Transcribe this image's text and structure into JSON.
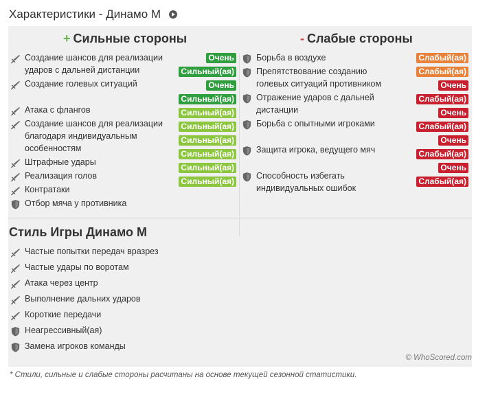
{
  "title": "Характеристики - Динамо М",
  "strengths": {
    "sign": "+",
    "heading": "Сильные стороны",
    "items": [
      {
        "text": "Создание шансов для реализации ударов с дальней дистанции",
        "icon": "sword-icon"
      },
      {
        "text": "Создание голевых ситуаций",
        "icon": "sword-icon"
      },
      {
        "text": "Атака с флангов",
        "icon": "sword-icon"
      },
      {
        "text": "Создание шансов для реализации благодаря индивидуальным особенностям",
        "icon": "sword-icon"
      },
      {
        "text": "Штрафные удары",
        "icon": "sword-icon"
      },
      {
        "text": "Реализация голов",
        "icon": "sword-icon"
      },
      {
        "text": "Контратаки",
        "icon": "sword-icon"
      },
      {
        "text": "Отбор мяча у противника",
        "icon": "shield-icon"
      }
    ],
    "badges": [
      {
        "label": "Очень",
        "style": "g-dark"
      },
      {
        "label": "Сильный(ая)",
        "style": "g-dark"
      },
      {
        "label": "Очень",
        "style": "g-dark"
      },
      {
        "label": "Сильный(ая)",
        "style": "g-dark"
      },
      {
        "label": "Сильный(ая)",
        "style": "g-light"
      },
      {
        "label": "Сильный(ая)",
        "style": "g-light"
      },
      {
        "label": "Сильный(ая)",
        "style": "g-light"
      },
      {
        "label": "Сильный(ая)",
        "style": "g-light"
      },
      {
        "label": "Сильный(ая)",
        "style": "g-light"
      },
      {
        "label": "Сильный(ая)",
        "style": "g-light"
      }
    ]
  },
  "weaknesses": {
    "sign": "-",
    "heading": "Слабые стороны",
    "items": [
      {
        "text": "Борьба в воздухе",
        "icon": "shield-icon"
      },
      {
        "text": "Препятствование созданию голевых ситуаций противником",
        "icon": "shield-icon"
      },
      {
        "text": "Отражение ударов с дальней дистанции",
        "icon": "shield-icon"
      },
      {
        "text": "Борьба с опытными игроками",
        "icon": "shield-icon"
      },
      {
        "text": "Защита игрока, ведущего мяч",
        "icon": "shield-icon"
      },
      {
        "text": "Способность избегать индивидуальных ошибок",
        "icon": "shield-icon"
      }
    ],
    "badges": [
      {
        "label": "Слабый(ая)",
        "style": "o-weak"
      },
      {
        "label": "Слабый(ая)",
        "style": "o-weak"
      },
      {
        "label": "Очень",
        "style": "r-weak"
      },
      {
        "label": "Слабый(ая)",
        "style": "r-weak"
      },
      {
        "label": "Очень",
        "style": "r-weak"
      },
      {
        "label": "Слабый(ая)",
        "style": "r-weak"
      },
      {
        "label": "Очень",
        "style": "r-weak"
      },
      {
        "label": "Слабый(ая)",
        "style": "r-weak"
      },
      {
        "label": "Очень",
        "style": "r-weak"
      },
      {
        "label": "Слабый(ая)",
        "style": "r-weak"
      }
    ]
  },
  "style": {
    "heading": "Стиль Игры Динамо М",
    "items": [
      {
        "text": "Частые попытки передач вразрез",
        "icon": "sword-icon"
      },
      {
        "text": "Частые удары по воротам",
        "icon": "sword-icon"
      },
      {
        "text": "Атака через центр",
        "icon": "sword-icon"
      },
      {
        "text": "Выполнение дальних ударов",
        "icon": "sword-icon"
      },
      {
        "text": "Короткие передачи",
        "icon": "sword-icon"
      },
      {
        "text": "Неагрессивный(ая)",
        "icon": "shield-icon"
      },
      {
        "text": "Замена игроков команды",
        "icon": "shield-icon"
      }
    ]
  },
  "watermark": "© WhoScored.com",
  "footnote": "* Стили, сильные и слабые стороны расчитаны на основе текущей сезонной статистики.",
  "colors": {
    "strong_dark": "#2e9e3e",
    "strong_light": "#8cc63f",
    "weak_orange": "#e8823a",
    "weak_red": "#c8202f"
  }
}
